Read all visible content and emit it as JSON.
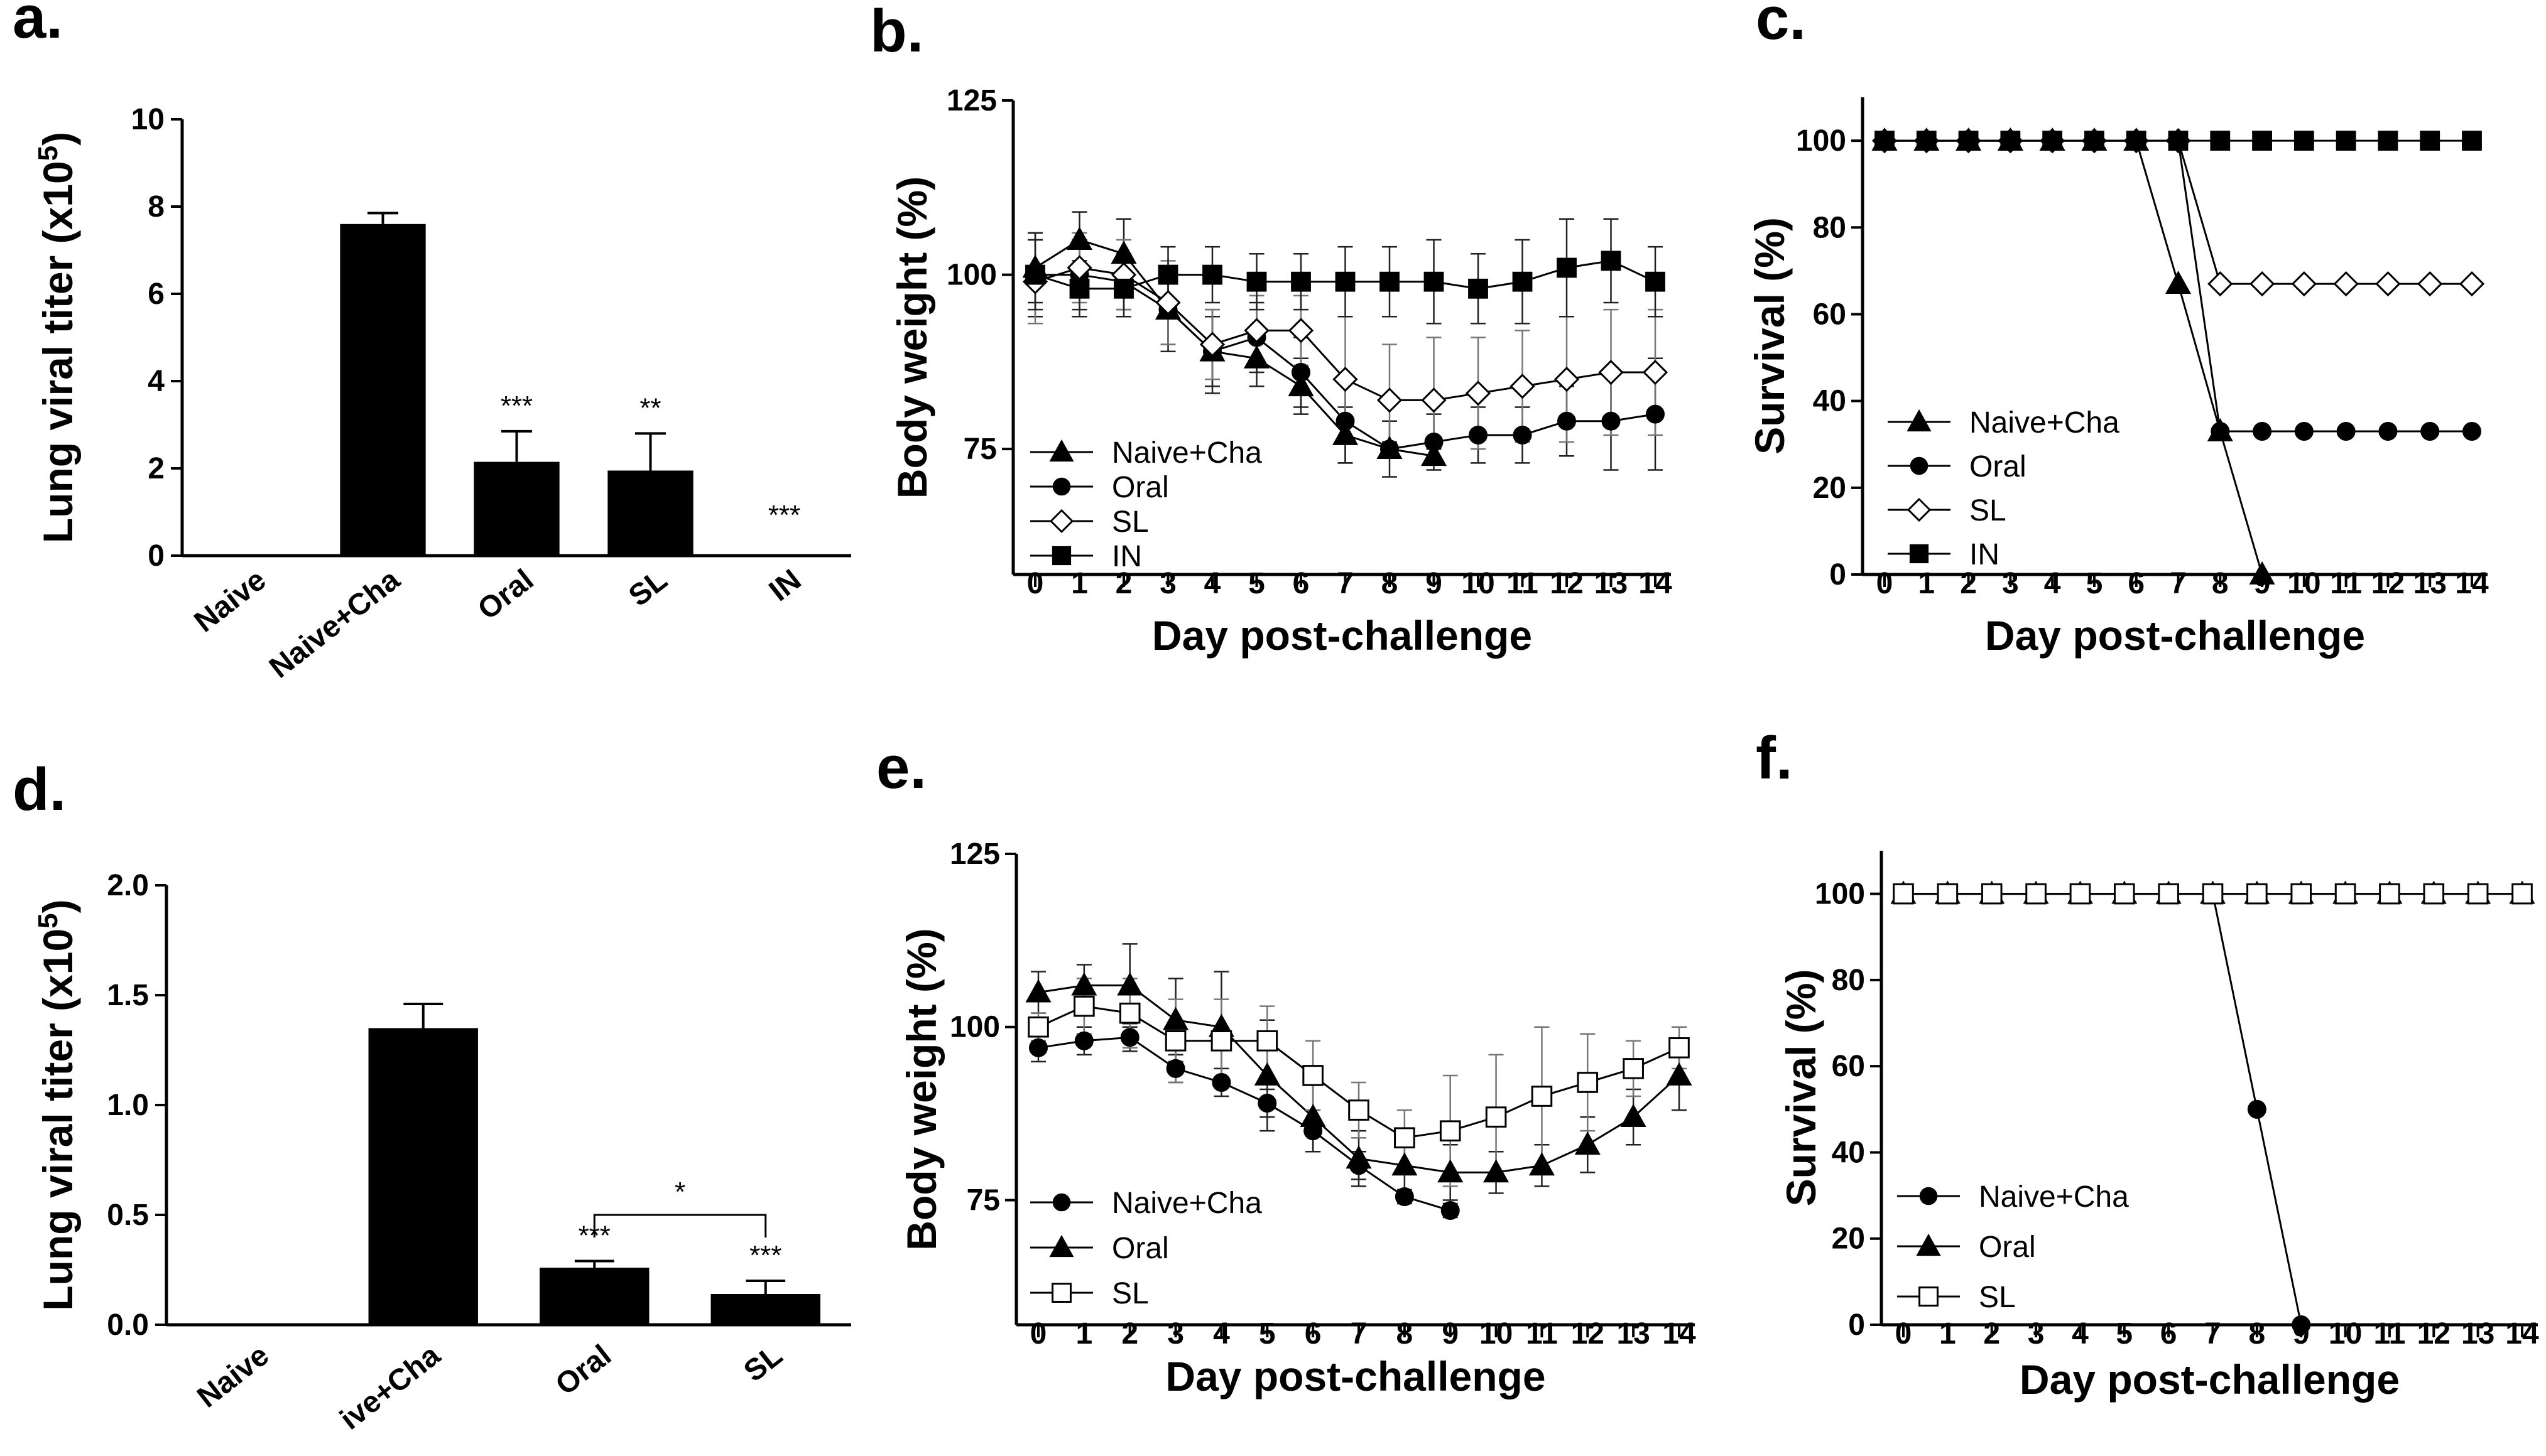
{
  "chart_data": [
    {
      "panel": "a.",
      "type": "bar",
      "ylabel": "Lung viral titer (x10",
      "ylabel_sup": "5",
      "ylabel_close": ")",
      "ylim": [
        0,
        10
      ],
      "yticks": [
        "0",
        "2",
        "4",
        "6",
        "8",
        "10"
      ],
      "categories": [
        "Naive",
        "Naive+Cha",
        "Oral",
        "SL",
        "IN"
      ],
      "values": [
        0,
        7.6,
        2.15,
        1.95,
        0
      ],
      "errors": [
        0,
        0.25,
        0.7,
        0.85,
        0
      ],
      "significance": [
        "",
        "",
        "***",
        "**",
        "***"
      ]
    },
    {
      "panel": "b.",
      "type": "line",
      "xlabel": "Day post-challenge",
      "ylabel": "Body weight (%)",
      "xlim": [
        0,
        14
      ],
      "ylim": [
        57,
        125
      ],
      "xticks": [
        "0",
        "1",
        "2",
        "3",
        "4",
        "5",
        "6",
        "7",
        "8",
        "9",
        "10",
        "11",
        "12",
        "13",
        "14"
      ],
      "yticks": [
        "75",
        "100",
        "125"
      ],
      "series": [
        {
          "name": "Naive+Cha",
          "marker": "triangle",
          "x": [
            0,
            1,
            2,
            3,
            4,
            5,
            6,
            7,
            8,
            9
          ],
          "y": [
            101,
            105,
            103,
            95,
            89,
            88,
            84,
            77,
            75,
            74
          ],
          "err": [
            5,
            4,
            5,
            6,
            5,
            4,
            4,
            4,
            1,
            1
          ]
        },
        {
          "name": "Oral",
          "marker": "circle",
          "x": [
            0,
            1,
            2,
            3,
            4,
            5,
            6,
            7,
            8,
            9,
            10,
            11,
            12,
            13,
            14
          ],
          "y": [
            100,
            100,
            99,
            95,
            89,
            91,
            86,
            79,
            75,
            76,
            77,
            77,
            79,
            79,
            80
          ],
          "err": [
            6,
            5,
            4,
            5,
            6,
            5,
            5,
            6,
            4,
            4,
            4,
            4,
            5,
            7,
            8
          ]
        },
        {
          "name": "SL",
          "marker": "diamond-open",
          "x": [
            0,
            1,
            2,
            3,
            4,
            5,
            6,
            7,
            8,
            9,
            10,
            11,
            12,
            13,
            14
          ],
          "y": [
            99,
            101,
            100,
            96,
            90,
            92,
            92,
            85,
            82,
            82,
            83,
            84,
            85,
            86,
            86
          ],
          "err": [
            6,
            5,
            5,
            6,
            5,
            5,
            5,
            9,
            8,
            9,
            8,
            8,
            9,
            9,
            9
          ]
        },
        {
          "name": "IN",
          "marker": "square",
          "x": [
            0,
            1,
            2,
            3,
            4,
            5,
            6,
            7,
            8,
            9,
            10,
            11,
            12,
            13,
            14
          ],
          "y": [
            100,
            98,
            98,
            100,
            100,
            99,
            99,
            99,
            99,
            99,
            98,
            99,
            101,
            102,
            99
          ],
          "err": [
            5,
            4,
            4,
            4,
            4,
            4,
            4,
            5,
            5,
            6,
            5,
            6,
            7,
            6,
            5
          ]
        }
      ]
    },
    {
      "panel": "c.",
      "type": "line",
      "xlabel": "Day post-challenge",
      "ylabel": "Survival (%)",
      "xlim": [
        0,
        14
      ],
      "ylim": [
        0,
        110
      ],
      "xticks": [
        "0",
        "1",
        "2",
        "3",
        "4",
        "5",
        "6",
        "7",
        "8",
        "9",
        "10",
        "11",
        "12",
        "13",
        "14"
      ],
      "yticks": [
        "0",
        "20",
        "40",
        "60",
        "80",
        "100"
      ],
      "series": [
        {
          "name": "Naive+Cha",
          "marker": "triangle",
          "x": [
            0,
            1,
            2,
            3,
            4,
            5,
            6,
            7,
            8,
            9
          ],
          "y": [
            100,
            100,
            100,
            100,
            100,
            100,
            100,
            67,
            33,
            0
          ]
        },
        {
          "name": "Oral",
          "marker": "circle",
          "x": [
            0,
            1,
            2,
            3,
            4,
            5,
            6,
            7,
            8,
            9,
            10,
            11,
            12,
            13,
            14
          ],
          "y": [
            100,
            100,
            100,
            100,
            100,
            100,
            100,
            100,
            33,
            33,
            33,
            33,
            33,
            33,
            33
          ]
        },
        {
          "name": "SL",
          "marker": "diamond-open",
          "x": [
            0,
            1,
            2,
            3,
            4,
            5,
            6,
            7,
            8,
            9,
            10,
            11,
            12,
            13,
            14
          ],
          "y": [
            100,
            100,
            100,
            100,
            100,
            100,
            100,
            100,
            67,
            67,
            67,
            67,
            67,
            67,
            67
          ]
        },
        {
          "name": "IN",
          "marker": "square",
          "x": [
            0,
            1,
            2,
            3,
            4,
            5,
            6,
            7,
            8,
            9,
            10,
            11,
            12,
            13,
            14
          ],
          "y": [
            100,
            100,
            100,
            100,
            100,
            100,
            100,
            100,
            100,
            100,
            100,
            100,
            100,
            100,
            100
          ]
        }
      ]
    },
    {
      "panel": "d.",
      "type": "bar",
      "ylabel": "Lung viral titer (x10",
      "ylabel_sup": "5",
      "ylabel_close": ")",
      "ylim": [
        0,
        2.0
      ],
      "yticks": [
        "0.0",
        "0.5",
        "1.0",
        "1.5",
        "2.0"
      ],
      "categories": [
        "Naive",
        "ive+Cha",
        "Oral",
        "SL"
      ],
      "values": [
        0,
        1.35,
        0.26,
        0.14
      ],
      "errors": [
        0,
        0.11,
        0.03,
        0.06
      ],
      "significance": [
        "",
        "",
        "***",
        "***"
      ],
      "bracket": "*"
    },
    {
      "panel": "e.",
      "type": "line",
      "xlabel": "Day post-challenge",
      "ylabel": "Body weight (%)",
      "xlim": [
        0,
        14
      ],
      "ylim": [
        57,
        125
      ],
      "xticks": [
        "0",
        "1",
        "2",
        "3",
        "4",
        "5",
        "6",
        "7",
        "8",
        "9",
        "10",
        "11",
        "12",
        "13",
        "14"
      ],
      "yticks": [
        "75",
        "100",
        "125"
      ],
      "series": [
        {
          "name": "Naive+Cha",
          "marker": "circle",
          "x": [
            0,
            1,
            2,
            3,
            4,
            5,
            6,
            7,
            8,
            9
          ],
          "y": [
            97,
            98,
            98.5,
            94,
            92,
            89,
            85,
            80,
            75.5,
            73.5
          ],
          "err": [
            2,
            2,
            2,
            2,
            2,
            2,
            3,
            2,
            1,
            1
          ]
        },
        {
          "name": "Oral",
          "marker": "triangle",
          "x": [
            0,
            1,
            2,
            3,
            4,
            5,
            6,
            7,
            8,
            9,
            10,
            11,
            12,
            13,
            14
          ],
          "y": [
            105,
            106,
            106,
            101,
            100,
            93,
            87,
            81,
            80,
            79,
            79,
            80,
            83,
            87,
            93
          ],
          "err": [
            3,
            3,
            6,
            6,
            8,
            8,
            5,
            4,
            4,
            4,
            3,
            3,
            4,
            4,
            5
          ]
        },
        {
          "name": "SL",
          "marker": "square-open",
          "x": [
            0,
            1,
            2,
            3,
            4,
            5,
            6,
            7,
            8,
            9,
            10,
            11,
            12,
            13,
            14
          ],
          "y": [
            100,
            103,
            102,
            98,
            98,
            98,
            93,
            88,
            84,
            85,
            87,
            90,
            92,
            94,
            97
          ],
          "err": [
            2,
            4,
            5,
            6,
            6,
            5,
            5,
            4,
            4,
            8,
            9,
            10,
            7,
            4,
            3
          ]
        }
      ]
    },
    {
      "panel": "f.",
      "type": "line",
      "xlabel": "Day post-challenge",
      "ylabel": "Survival (%)",
      "xlim": [
        0,
        14
      ],
      "ylim": [
        0,
        110
      ],
      "xticks": [
        "0",
        "1",
        "2",
        "3",
        "4",
        "5",
        "6",
        "7",
        "8",
        "9",
        "10",
        "11",
        "12",
        "13",
        "14"
      ],
      "yticks": [
        "0",
        "20",
        "40",
        "60",
        "80",
        "100"
      ],
      "series": [
        {
          "name": "Naive+Cha",
          "marker": "circle",
          "x": [
            0,
            1,
            2,
            3,
            4,
            5,
            6,
            7,
            8,
            9
          ],
          "y": [
            100,
            100,
            100,
            100,
            100,
            100,
            100,
            100,
            50,
            0
          ]
        },
        {
          "name": "Oral",
          "marker": "triangle",
          "x": [
            0,
            1,
            2,
            3,
            4,
            5,
            6,
            7,
            8,
            9,
            10,
            11,
            12,
            13,
            14
          ],
          "y": [
            100,
            100,
            100,
            100,
            100,
            100,
            100,
            100,
            100,
            100,
            100,
            100,
            100,
            100,
            100
          ]
        },
        {
          "name": "SL",
          "marker": "square-open",
          "x": [
            0,
            1,
            2,
            3,
            4,
            5,
            6,
            7,
            8,
            9,
            10,
            11,
            12,
            13,
            14
          ],
          "y": [
            100,
            100,
            100,
            100,
            100,
            100,
            100,
            100,
            100,
            100,
            100,
            100,
            100,
            100,
            100
          ]
        }
      ]
    }
  ]
}
